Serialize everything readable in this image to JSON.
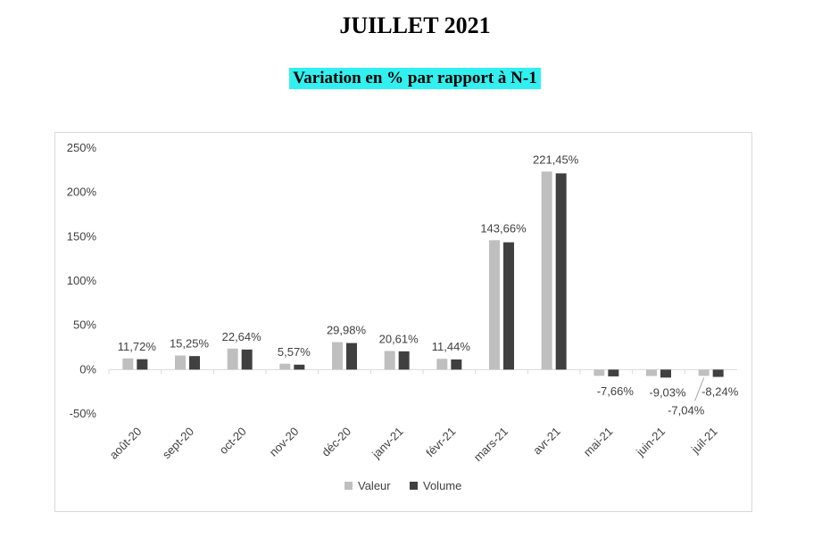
{
  "header": {
    "title": "JUILLET 2021",
    "subtitle": "Variation en % par rapport à N-1"
  },
  "chart_data": {
    "type": "bar",
    "categories": [
      "août-20",
      "sept-20",
      "oct-20",
      "nov-20",
      "déc-20",
      "janv-21",
      "févr-21",
      "mars-21",
      "avr-21",
      "mai-21",
      "juin-21",
      "juil-21"
    ],
    "series": [
      {
        "name": "Valeur",
        "color": "#bfbfbf",
        "values": [
          12.6,
          15.9,
          23.7,
          6.6,
          31.0,
          21.0,
          12.2,
          146.0,
          223.5,
          -7.0,
          -7.2,
          -7.04
        ]
      },
      {
        "name": "Volume",
        "color": "#404040",
        "values": [
          11.72,
          15.25,
          22.64,
          5.57,
          29.98,
          20.61,
          11.44,
          143.66,
          221.45,
          -7.66,
          -9.03,
          -8.24
        ]
      }
    ],
    "data_labels": [
      "11,72%",
      "15,25%",
      "22,64%",
      "5,57%",
      "29,98%",
      "20,61%",
      "11,44%",
      "143,66%",
      "221,45%",
      "-7,66%",
      "-9,03%",
      "-8,24%"
    ],
    "extra_label": "-7,04%",
    "y_ticks": [
      "250%",
      "200%",
      "150%",
      "100%",
      "50%",
      "0%",
      "-50%"
    ],
    "ylim": [
      -50,
      250
    ],
    "legend": "bottom",
    "grid": false
  }
}
